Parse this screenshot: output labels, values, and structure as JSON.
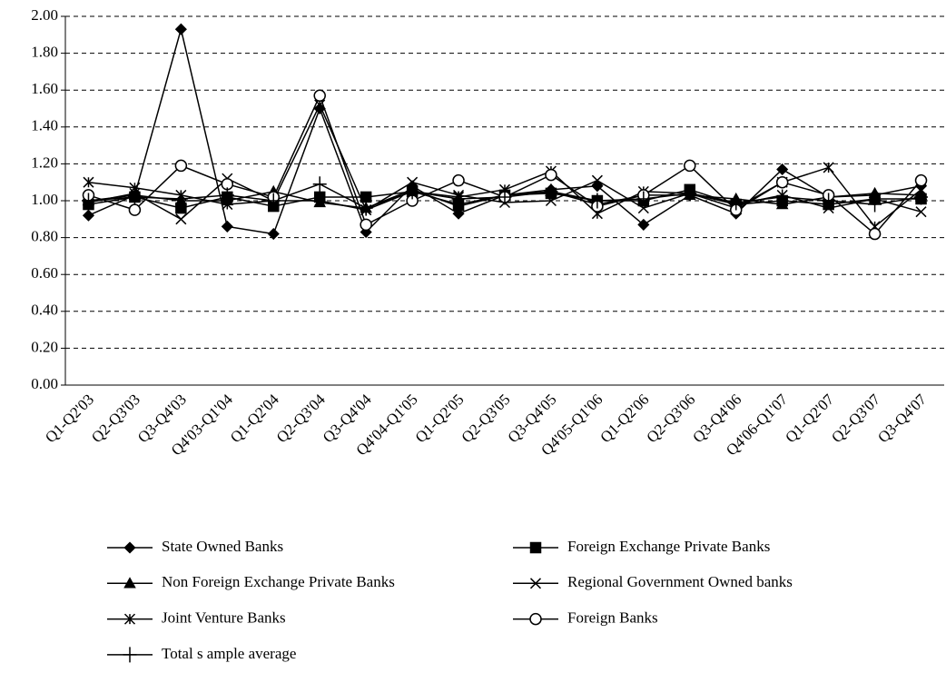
{
  "chart_data": {
    "type": "line",
    "categories": [
      "Q1-Q2'03",
      "Q2-Q3'03",
      "Q3-Q4'03",
      "Q4'03-Q1'04",
      "Q1-Q2'04",
      "Q2-Q3'04",
      "Q3-Q4'04",
      "Q4'04-Q1'05",
      "Q1-Q2'05",
      "Q2-Q3'05",
      "Q3-Q4'05",
      "Q4'05-Q1'06",
      "Q1-Q2'06",
      "Q2-Q3'06",
      "Q3-Q4'06",
      "Q4'06-Q1'07",
      "Q1-Q2'07",
      "Q2-Q3'07",
      "Q3-Q4'07"
    ],
    "series": [
      {
        "name": "State Owned Banks",
        "color": "#000000",
        "marker": "diamond",
        "values": [
          0.92,
          1.03,
          1.93,
          0.86,
          0.82,
          1.5,
          0.83,
          1.08,
          0.93,
          1.03,
          1.06,
          1.08,
          0.87,
          1.03,
          0.93,
          1.17,
          1.02,
          1.03,
          1.08
        ]
      },
      {
        "name": "Foreign Exchange Private Banks",
        "color": "#000000",
        "marker": "square",
        "values": [
          0.98,
          1.02,
          0.96,
          1.02,
          0.97,
          1.02,
          1.02,
          1.05,
          0.98,
          1.03,
          1.04,
          1.0,
          1.0,
          1.06,
          0.98,
          1.0,
          0.98,
          1.01,
          1.01
        ]
      },
      {
        "name": "Non Foreign Exchange Private Banks",
        "color": "#000000",
        "marker": "triangle",
        "values": [
          1.0,
          1.03,
          1.0,
          1.0,
          1.05,
          0.99,
          0.96,
          1.06,
          0.97,
          1.03,
          1.05,
          0.98,
          1.03,
          1.03,
          1.01,
          0.98,
          1.02,
          1.04,
          1.03
        ]
      },
      {
        "name": "Regional Government Owned banks",
        "color": "#000000",
        "marker": "x",
        "values": [
          0.99,
          1.04,
          0.9,
          1.12,
          1.0,
          1.0,
          0.95,
          1.1,
          1.03,
          0.99,
          1.0,
          1.11,
          0.96,
          1.04,
          0.98,
          1.03,
          0.96,
          1.01,
          0.94
        ]
      },
      {
        "name": "Joint Venture Banks",
        "color": "#000000",
        "marker": "asterisk",
        "values": [
          1.1,
          1.07,
          1.03,
          0.98,
          1.0,
          1.52,
          0.95,
          1.05,
          1.02,
          1.06,
          1.16,
          0.93,
          1.05,
          1.04,
          0.96,
          1.1,
          1.18,
          0.86,
          1.06
        ]
      },
      {
        "name": "Foreign Banks",
        "color": "#000000",
        "marker": "circle",
        "values": [
          1.03,
          0.95,
          1.19,
          1.09,
          1.02,
          1.57,
          0.87,
          1.0,
          1.11,
          1.02,
          1.14,
          0.97,
          1.03,
          1.19,
          0.95,
          1.1,
          1.03,
          0.82,
          1.11
        ]
      },
      {
        "name": "Total s ample average",
        "color": "#000000",
        "marker": "plus",
        "values": [
          1.0,
          1.02,
          1.01,
          1.03,
          1.0,
          1.09,
          0.96,
          1.05,
          1.01,
          1.02,
          1.05,
          1.0,
          1.01,
          1.04,
          0.99,
          1.02,
          1.0,
          0.98,
          1.02
        ]
      }
    ],
    "ylim": [
      0,
      2
    ],
    "yticks": [
      {
        "value": 0,
        "label": "0.00"
      },
      {
        "value": 0.2,
        "label": "0.20"
      },
      {
        "value": 0.4,
        "label": "0.40"
      },
      {
        "value": 0.6,
        "label": "0.60"
      },
      {
        "value": 0.8,
        "label": "0.80"
      },
      {
        "value": 1,
        "label": "1.00"
      },
      {
        "value": 1.2,
        "label": "1.20"
      },
      {
        "value": 1.4,
        "label": "1.40"
      },
      {
        "value": 1.6,
        "label": "1.60"
      },
      {
        "value": 1.8,
        "label": "1.80"
      },
      {
        "value": 2,
        "label": "2.00"
      }
    ],
    "grid": true,
    "legend": "bottom"
  }
}
